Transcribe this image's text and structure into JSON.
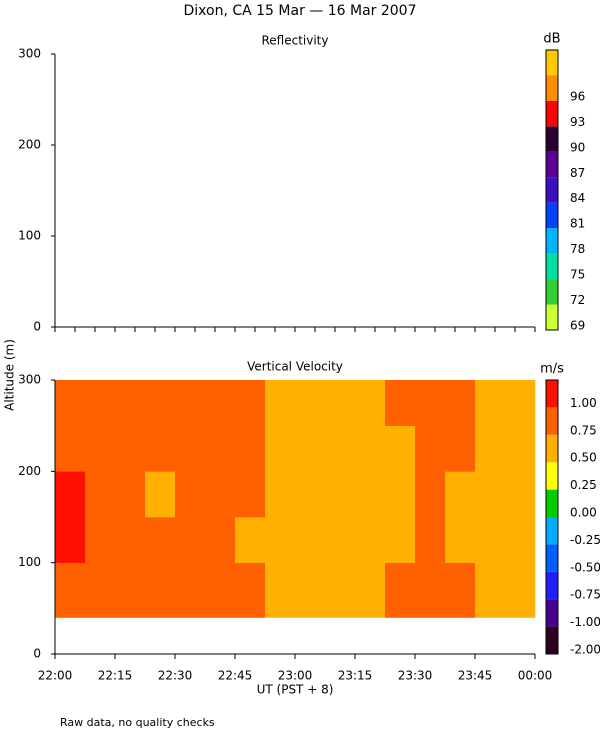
{
  "page": {
    "title": "Dixon, CA 15 Mar — 16 Mar 2007",
    "ylabel": "Altitude (m)",
    "xlabel": "UT  (PST + 8)",
    "note": "Raw data, no quality checks"
  },
  "chart_data": [
    {
      "type": "heatmap",
      "title": "Reflectivity",
      "xlim": [
        0,
        120
      ],
      "ylim": [
        0,
        300
      ],
      "yticks": [
        0,
        100,
        200,
        300
      ],
      "xticks": [
        0,
        5,
        10,
        15,
        20,
        25,
        30,
        35,
        40,
        45,
        50,
        55,
        60,
        65,
        70,
        75,
        80,
        85,
        90,
        95,
        100,
        105,
        110,
        115,
        120
      ],
      "xtick_labels": false,
      "colorbar": {
        "unit": "dB",
        "levels": [
          69,
          72,
          75,
          78,
          81,
          84,
          87,
          90,
          93,
          96
        ],
        "colors": [
          "#ccff33",
          "#33cc33",
          "#00e0a0",
          "#00b4ff",
          "#0040ff",
          "#3a10c0",
          "#5a0090",
          "#2a0030",
          "#ff0000",
          "#ff8c00",
          "#ffc800"
        ]
      },
      "x_edges": [],
      "y_edges": [],
      "z": []
    },
    {
      "type": "heatmap",
      "title": "Vertical Velocity",
      "xlim": [
        0,
        120
      ],
      "ylim": [
        0,
        300
      ],
      "yticks": [
        0,
        100,
        200,
        300
      ],
      "xticks": [
        {
          "value": 0,
          "label": "22:00"
        },
        {
          "value": 15,
          "label": "22:15"
        },
        {
          "value": 30,
          "label": "22:30"
        },
        {
          "value": 45,
          "label": "22:45"
        },
        {
          "value": 60,
          "label": "23:00"
        },
        {
          "value": 75,
          "label": "23:15"
        },
        {
          "value": 90,
          "label": "23:30"
        },
        {
          "value": 105,
          "label": "23:45"
        },
        {
          "value": 120,
          "label": "00:00"
        }
      ],
      "xtick_labels": true,
      "colorbar": {
        "unit": "m/s",
        "levels": [
          {
            "value": -2,
            "label": "-2.00"
          },
          {
            "value": -1,
            "label": "-1.00"
          },
          {
            "value": -0.75,
            "label": "-0.75"
          },
          {
            "value": -0.5,
            "label": "-0.50"
          },
          {
            "value": -0.25,
            "label": "-0.25"
          },
          {
            "value": 0,
            "label": "0.00"
          },
          {
            "value": 0.25,
            "label": "0.25"
          },
          {
            "value": 0.5,
            "label": "0.50"
          },
          {
            "value": 0.75,
            "label": "0.75"
          },
          {
            "value": 1,
            "label": "1.00"
          }
        ],
        "colors": [
          "#300020",
          "#480090",
          "#2020ff",
          "#0060ff",
          "#00aaff",
          "#00cc00",
          "#ffff00",
          "#ffb000",
          "#ff6000",
          "#ff1000"
        ]
      },
      "x_edges": [
        0,
        7.5,
        15,
        22.5,
        30,
        37.5,
        45,
        52.5,
        60,
        67.5,
        75,
        82.5,
        90,
        97.5,
        105,
        112.5,
        120
      ],
      "y_edges": [
        40,
        100,
        150,
        200,
        250,
        300
      ],
      "z": [
        [
          0.95,
          0.9,
          0.85,
          0.8,
          0.9,
          0.85,
          0.75,
          0.7,
          0.65,
          0.6,
          0.7,
          0.85,
          0.9,
          0.75,
          0.65,
          0.55
        ],
        [
          1.05,
          0.9,
          0.8,
          0.75,
          0.8,
          0.85,
          0.7,
          0.65,
          0.6,
          0.55,
          0.65,
          0.7,
          0.75,
          0.7,
          0.6,
          0.55
        ],
        [
          1.05,
          0.95,
          0.8,
          0.7,
          0.75,
          0.85,
          0.8,
          0.7,
          0.6,
          0.6,
          0.6,
          0.7,
          0.8,
          0.7,
          0.65,
          0.6
        ],
        [
          0.95,
          0.9,
          0.8,
          0.75,
          0.8,
          0.9,
          0.75,
          0.65,
          0.6,
          0.55,
          0.6,
          0.7,
          0.85,
          0.75,
          0.65,
          0.6
        ],
        [
          0.9,
          0.85,
          0.85,
          0.8,
          0.85,
          0.9,
          0.8,
          0.7,
          0.65,
          0.6,
          0.65,
          0.75,
          0.85,
          0.8,
          0.7,
          0.65
        ]
      ]
    }
  ]
}
